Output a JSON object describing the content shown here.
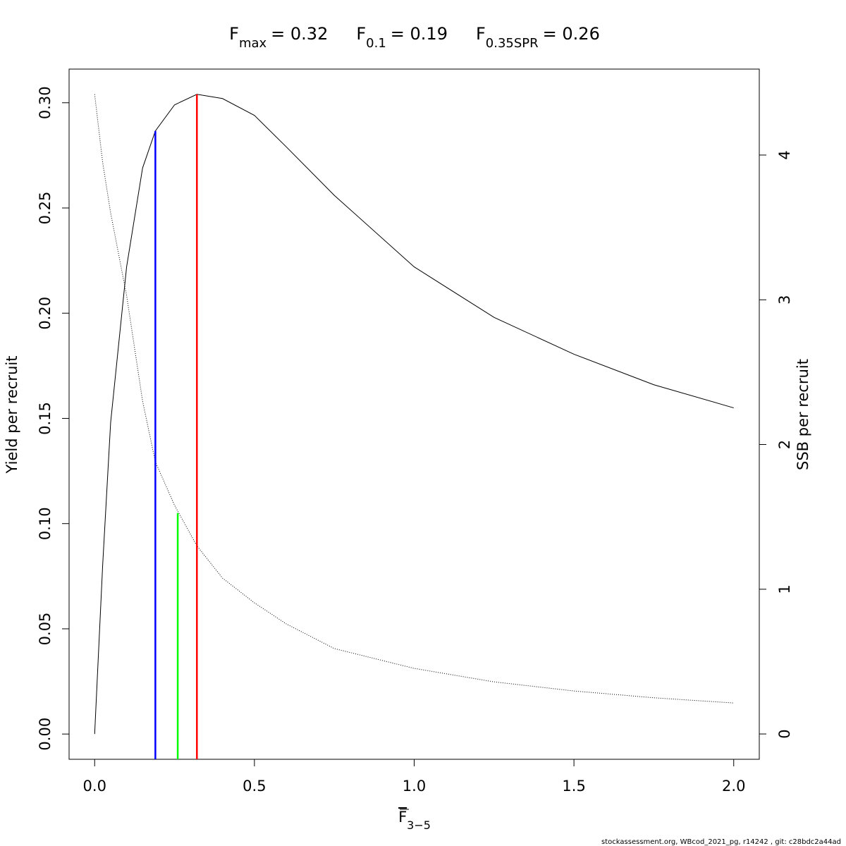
{
  "chart_data": {
    "type": "line",
    "title": [
      {
        "base": "F",
        "sub": "max",
        "rest": "= 0.32"
      },
      {
        "base": "F",
        "sub": "0.1",
        "rest": "= 0.19"
      },
      {
        "base": "F",
        "sub": "0.35SPR",
        "rest": "= 0.26"
      }
    ],
    "xlabel": {
      "base": "F",
      "sub": "3−5"
    },
    "ylabel": "Yield per recruit",
    "y2label": "SSB per recruit",
    "footer": "stockassessment.org, WBcod_2021_pg, r14242 , git: c28bdc2a44ad",
    "x": [
      0,
      0.025,
      0.05,
      0.1,
      0.15,
      0.19,
      0.25,
      0.32,
      0.4,
      0.5,
      0.6,
      0.75,
      1.0,
      1.25,
      1.5,
      1.75,
      2.0
    ],
    "series": [
      {
        "color": "#000000",
        "line_style": "solid",
        "values": [
          0,
          0.08,
          0.148,
          0.222,
          0.269,
          0.2866,
          0.299,
          0.304,
          0.302,
          0.294,
          0.279,
          0.256,
          0.222,
          0.198,
          0.1805,
          0.166,
          0.155
        ]
      },
      {
        "color": "#000000",
        "line_style": "dotted",
        "axis": "y2",
        "values": [
          4.42,
          3.95,
          3.6,
          3.03,
          2.3,
          1.88,
          1.58,
          1.3,
          1.077,
          0.906,
          0.76,
          0.59,
          0.453,
          0.36,
          0.297,
          0.25,
          0.214
        ]
      }
    ],
    "reference_lines": [
      {
        "x": 0.19,
        "y": 0.2866,
        "color": "#0000ff"
      },
      {
        "x": 0.26,
        "y": 0.105,
        "color": "#00ff00"
      },
      {
        "x": 0.32,
        "y": 0.304,
        "color": "#ff0000"
      }
    ],
    "xlim": [
      -0.08,
      2.08
    ],
    "ylim": [
      -0.012,
      0.316
    ],
    "y2lim": [
      -0.175,
      4.594
    ],
    "xticks": [
      {
        "value": 0,
        "label": "0.0"
      },
      0.5,
      {
        "value": 1,
        "label": "1.0"
      },
      1.5,
      {
        "value": 2,
        "label": "2.0"
      }
    ],
    "yticks": [
      {
        "value": 0,
        "label": "0.00"
      },
      0.05,
      {
        "value": 0.1,
        "label": "0.10"
      },
      0.15,
      {
        "value": 0.2,
        "label": "0.20"
      },
      0.25,
      {
        "value": 0.3,
        "label": "0.30"
      }
    ],
    "y2ticks": [
      0,
      1,
      2,
      3,
      4
    ]
  }
}
